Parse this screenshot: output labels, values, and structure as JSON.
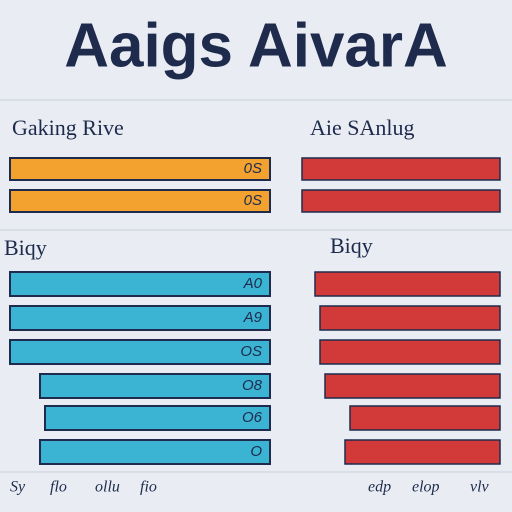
{
  "title": "Aaigs AivarA",
  "left_panel": {
    "heading": "Gaking Rive",
    "top_labels": [
      "0S",
      "0S"
    ],
    "subheading": "Biqy",
    "row_labels": [
      "A0",
      "A9",
      "OS",
      "O8",
      "O6",
      "O"
    ],
    "footer": [
      "Sy",
      "flo",
      "ollu",
      "fio"
    ]
  },
  "right_panel": {
    "heading": "Aie SAnlug",
    "subheading": "Biqy",
    "footer": [
      "edp",
      "elop",
      "vlv"
    ]
  }
}
